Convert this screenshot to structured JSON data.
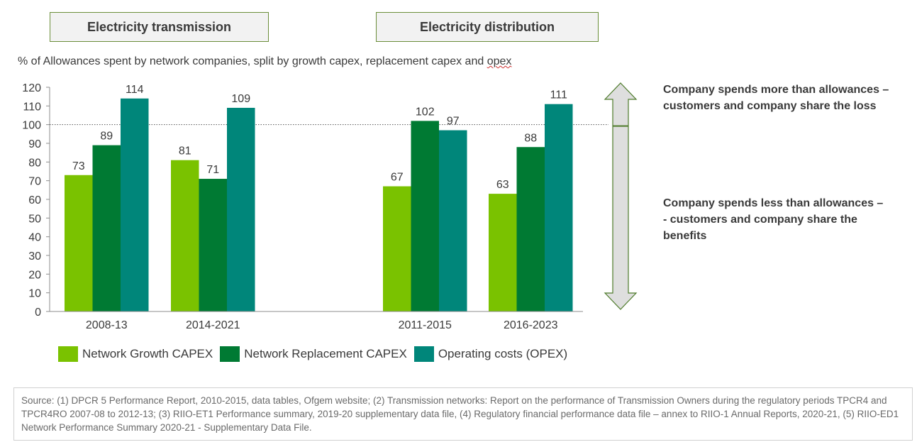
{
  "panels": {
    "transmission_label": "Electricity transmission",
    "distribution_label": "Electricity distribution"
  },
  "subtitle_main": "% of Allowances spent by network companies, split by growth capex, replacement capex and ",
  "subtitle_tail": "opex",
  "notes": {
    "more": "Company spends more than allowances – customers and company share the loss",
    "less": "Company spends less than allowances – - customers and company share the benefits"
  },
  "colors": {
    "growth": "#7ac200",
    "replacement": "#007a33",
    "opex": "#00867a",
    "arrow_fill": "#dedede",
    "arrow_stroke": "#4d7a2a"
  },
  "chart_data": {
    "type": "bar",
    "categories": [
      "2008-13",
      "2014-2021",
      "2011-2015",
      "2016-2023"
    ],
    "series": [
      {
        "name": "Network Growth CAPEX",
        "values": [
          73,
          81,
          67,
          63
        ]
      },
      {
        "name": "Network Replacement CAPEX",
        "values": [
          89,
          71,
          102,
          88
        ]
      },
      {
        "name": "Operating costs (OPEX)",
        "values": [
          114,
          109,
          97,
          111
        ]
      }
    ],
    "ylim": [
      0,
      120
    ],
    "yticks": [
      0,
      10,
      20,
      30,
      40,
      50,
      60,
      70,
      80,
      90,
      100,
      110,
      120
    ],
    "reference_line": 100,
    "legend_position": "bottom-left",
    "grid": false
  },
  "source_text": "Source: (1) DPCR 5 Performance Report, 2010-2015, data tables, Ofgem website; (2) Transmission networks: Report on the performance of Transmission Owners during the regulatory periods TPCR4 and TPCR4RO 2007-08 to 2012-13; (3) RIIO-ET1 Performance summary, 2019-20 supplementary data file, (4) Regulatory financial performance data file – annex to RIIO-1 Annual Reports, 2020-21, (5) RIIO-ED1 Network Performance Summary 2020-21 - Supplementary Data File."
}
